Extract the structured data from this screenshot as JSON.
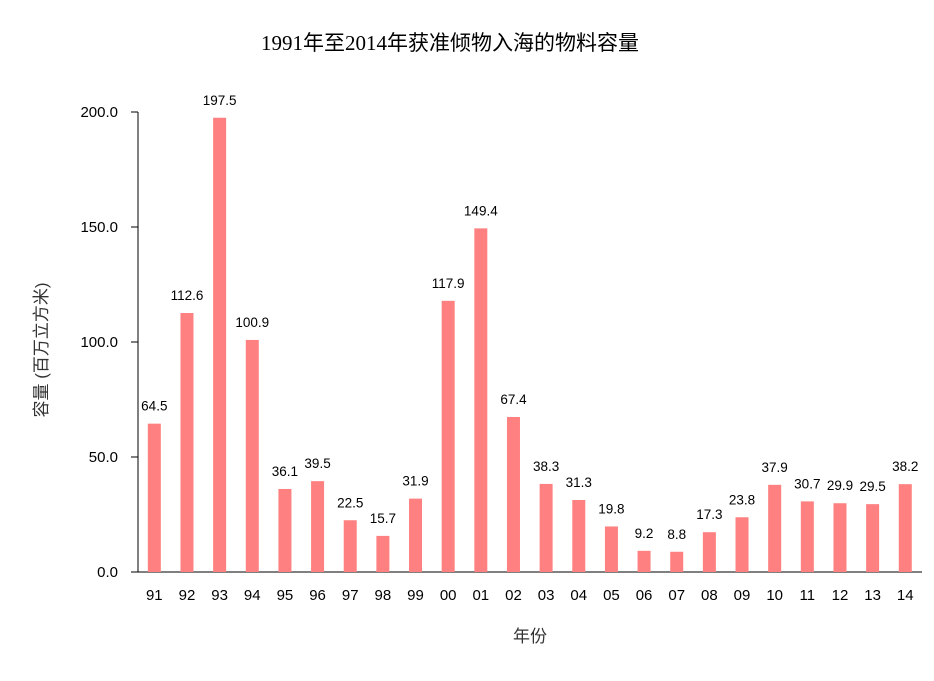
{
  "chart_data": {
    "type": "bar",
    "title": "1991年至2014年获准倾物入海的物料容量",
    "xlabel": "年份",
    "ylabel": "容量 (百万立方米)",
    "ylim": [
      0,
      200
    ],
    "yticks": [
      "0.0",
      "50.0",
      "100.0",
      "150.0",
      "200.0"
    ],
    "grid": false,
    "categories": [
      "91",
      "92",
      "93",
      "94",
      "95",
      "96",
      "97",
      "98",
      "99",
      "00",
      "01",
      "02",
      "03",
      "04",
      "05",
      "06",
      "07",
      "08",
      "09",
      "10",
      "11",
      "12",
      "13",
      "14"
    ],
    "values": [
      64.5,
      112.6,
      197.5,
      100.9,
      36.1,
      39.5,
      22.5,
      15.7,
      31.9,
      117.9,
      149.4,
      67.4,
      38.3,
      31.3,
      19.8,
      9.2,
      8.8,
      17.3,
      23.8,
      37.9,
      30.7,
      29.9,
      29.5,
      38.2
    ],
    "data_labels": [
      "64.5",
      "112.6",
      "197.5",
      "100.9",
      "36.1",
      "39.5",
      "22.5",
      "15.7",
      "31.9",
      "117.9",
      "149.4",
      "67.4",
      "38.3",
      "31.3",
      "19.8",
      "9.2",
      "8.8",
      "17.3",
      "23.8",
      "37.9",
      "30.7",
      "29.9",
      "29.5",
      "38.2"
    ],
    "bar_color": "#ff8080"
  }
}
